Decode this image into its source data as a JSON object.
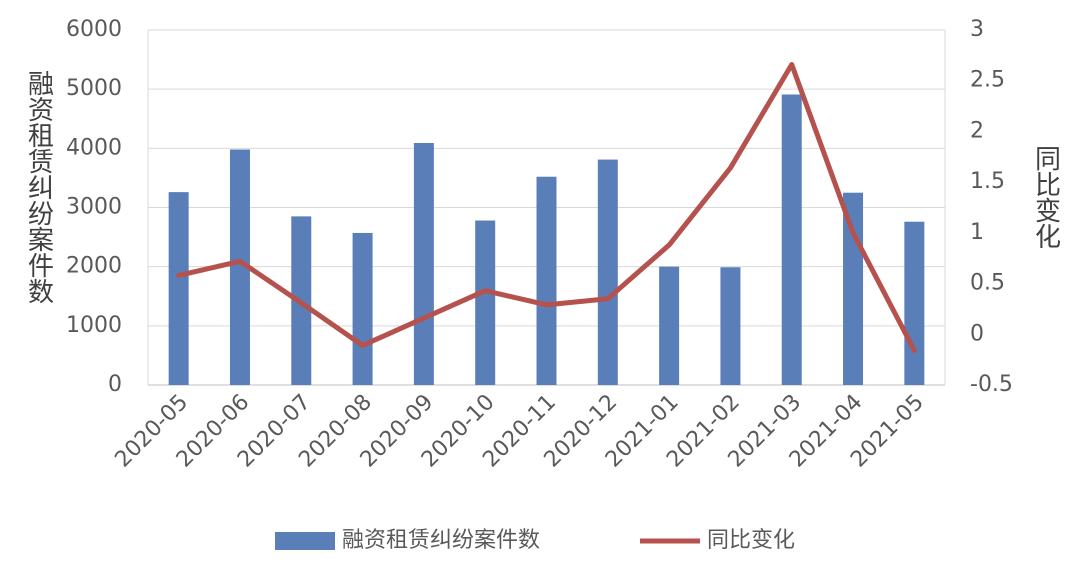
{
  "chart_data": {
    "type": "bar_line",
    "categories": [
      "2020-05",
      "2020-06",
      "2020-07",
      "2020-08",
      "2020-09",
      "2020-10",
      "2020-11",
      "2020-12",
      "2021-01",
      "2021-02",
      "2021-03",
      "2021-04",
      "2021-05"
    ],
    "y_label": "融资租赁纠纷案件数",
    "y2_label": "同比变化",
    "series": [
      {
        "name": "融资租赁纠纷案件数",
        "type": "bar",
        "color": "#5a7fb8",
        "values": [
          3260,
          3980,
          2850,
          2570,
          4090,
          2780,
          3520,
          3810,
          2000,
          1990,
          4910,
          3250,
          2760
        ]
      },
      {
        "name": "同比变化",
        "type": "line",
        "axis": "y2",
        "color": "#b5524e",
        "values": [
          0.58,
          0.72,
          0.31,
          -0.11,
          0.16,
          0.43,
          0.29,
          0.35,
          0.88,
          1.64,
          2.66,
          1.0,
          -0.16
        ]
      }
    ],
    "ylim": [
      0,
      6000
    ],
    "yticks": [
      0,
      1000,
      2000,
      3000,
      4000,
      5000,
      6000
    ],
    "y2lim": [
      -0.5,
      3
    ],
    "y2ticks": [
      -0.5,
      0,
      0.5,
      1,
      1.5,
      2,
      2.5,
      3
    ],
    "grid": true,
    "legend": "bottom"
  }
}
